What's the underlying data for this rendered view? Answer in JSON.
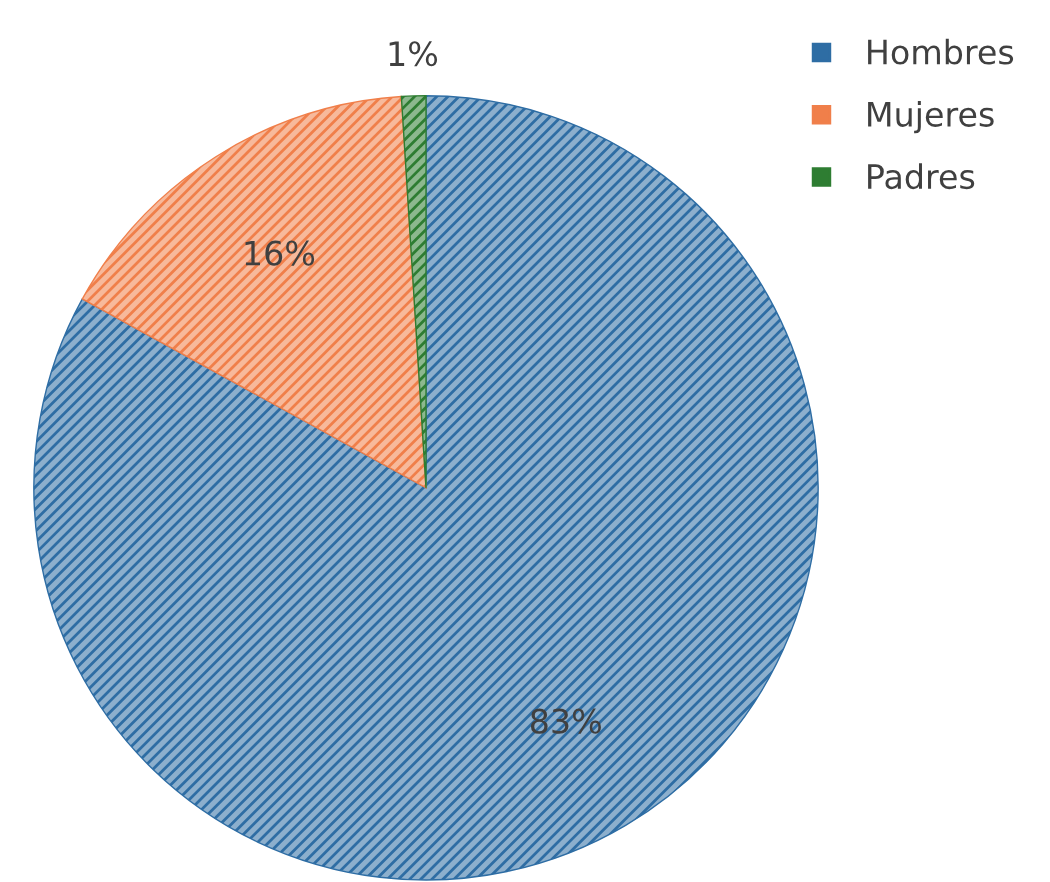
{
  "chart_data": {
    "type": "pie",
    "categories": [
      "Hombres",
      "Mujeres",
      "Padres"
    ],
    "values": [
      83,
      16,
      1
    ],
    "colors": [
      "#2e6da4",
      "#f07f4a",
      "#2e7d32"
    ],
    "value_labels": [
      "83%",
      "16%",
      "1%"
    ],
    "legend": "top right"
  }
}
